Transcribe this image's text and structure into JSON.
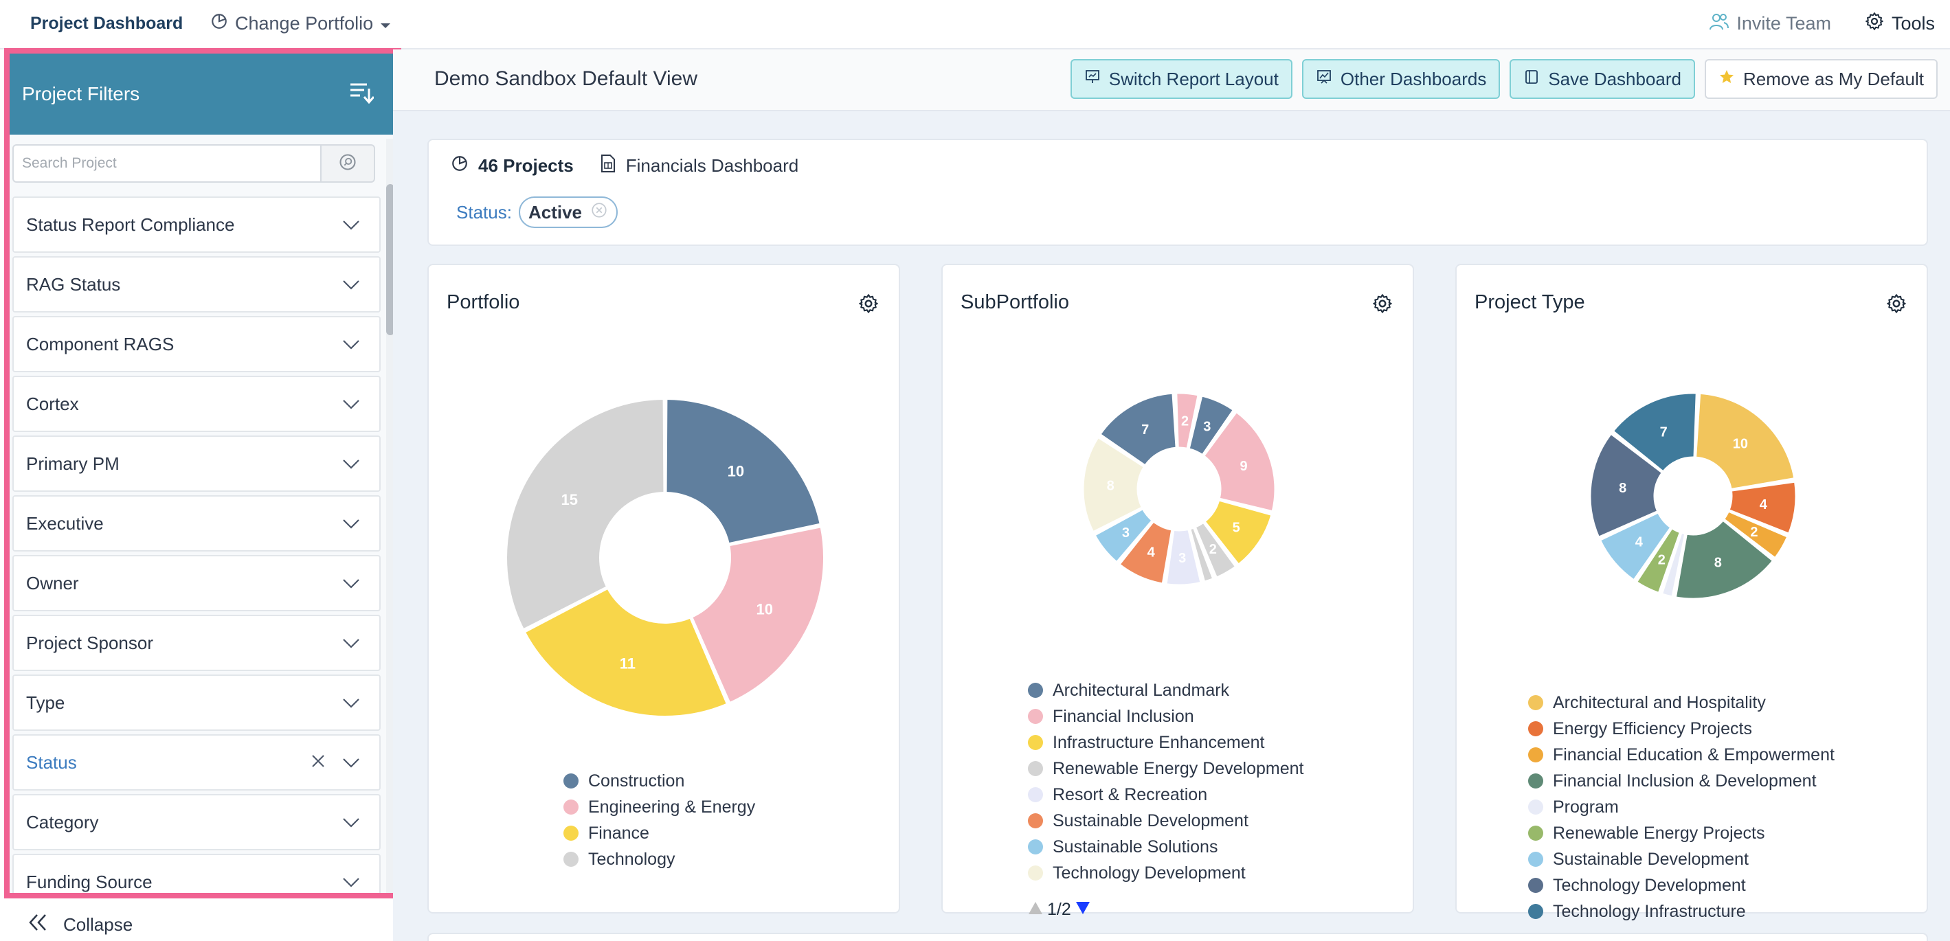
{
  "topbar": {
    "brand": "Project Dashboard",
    "change_portfolio": "Change Portfolio",
    "invite_team": "Invite Team",
    "tools": "Tools"
  },
  "sidebar": {
    "title": "Project Filters",
    "search_placeholder": "Search Project",
    "filters": [
      {
        "label": "Status Report Compliance",
        "active": false
      },
      {
        "label": "RAG Status",
        "active": false
      },
      {
        "label": "Component RAGS",
        "active": false
      },
      {
        "label": "Cortex",
        "active": false
      },
      {
        "label": "Primary PM",
        "active": false
      },
      {
        "label": "Executive",
        "active": false
      },
      {
        "label": "Owner",
        "active": false
      },
      {
        "label": "Project Sponsor",
        "active": false
      },
      {
        "label": "Type",
        "active": false
      },
      {
        "label": "Status",
        "active": true
      },
      {
        "label": "Category",
        "active": false
      },
      {
        "label": "Funding Source",
        "active": false
      }
    ],
    "collapse_label": "Collapse"
  },
  "main": {
    "view_title": "Demo Sandbox Default View",
    "buttons": {
      "switch_layout": "Switch Report Layout",
      "other_dashboards": "Other Dashboards",
      "save_dashboard": "Save Dashboard",
      "remove_default": "Remove as My Default"
    },
    "summary": {
      "projects_count": "46 Projects",
      "financials": "Financials Dashboard",
      "status_label": "Status",
      "status_separator": ":",
      "status_value": "Active"
    }
  },
  "colors": {
    "accent": "#3e88a8",
    "highlight_border": "#f06292",
    "link": "#3b7bbf"
  },
  "chart_data": [
    {
      "type": "pie",
      "title": "Portfolio",
      "categories": [
        "Construction",
        "Engineering & Energy",
        "Finance",
        "Technology"
      ],
      "values": [
        10,
        10,
        11,
        15
      ],
      "colors": [
        "#607f9e",
        "#f4b9c2",
        "#f8d64a",
        "#d4d4d4"
      ],
      "legend": "bottom"
    },
    {
      "type": "pie",
      "title": "SubPortfolio",
      "categories": [
        "Architectural Landmark",
        "Financial Inclusion",
        "Infrastructure Enhancement",
        "Renewable Energy Development",
        "Resort & Recreation",
        "Sustainable Development",
        "Sustainable Solutions",
        "Technology Development"
      ],
      "slices": [
        {
          "value": 3,
          "color": "#607f9e"
        },
        {
          "value": 9,
          "color": "#f4b9c2"
        },
        {
          "value": 5,
          "color": "#f8d64a"
        },
        {
          "value": 2,
          "color": "#d4d4d4"
        },
        {
          "value": 1,
          "color": "#d4d4d4"
        },
        {
          "value": 3,
          "color": "#e6e8f8"
        },
        {
          "value": 4,
          "color": "#ee8a5c"
        },
        {
          "value": 3,
          "color": "#95cbe9"
        },
        {
          "value": 8,
          "color": "#f4f1dc"
        },
        {
          "value": 7,
          "color": "#607f9e"
        },
        {
          "value": 2,
          "color": "#f4b9c2"
        }
      ],
      "legend_colors": [
        "#607f9e",
        "#f4b9c2",
        "#f8d64a",
        "#d4d4d4",
        "#e6e8f8",
        "#ee8a5c",
        "#95cbe9",
        "#f4f1dc"
      ],
      "legend": "bottom",
      "pager": "1/2"
    },
    {
      "type": "pie",
      "title": "Project Type",
      "categories": [
        "Architectural and Hospitality",
        "Energy Efficiency Projects",
        "Financial Education & Empowerment",
        "Financial Inclusion & Development",
        "Program",
        "Renewable Energy Projects",
        "Sustainable Development",
        "Technology Development",
        "Technology Infrastructure"
      ],
      "slices": [
        {
          "value": 10,
          "color": "#f2c55c"
        },
        {
          "value": 4,
          "color": "#e8733a"
        },
        {
          "value": 2,
          "color": "#f0a93a"
        },
        {
          "value": 8,
          "color": "#5f8a76"
        },
        {
          "value": 1,
          "color": "#e8ebf7"
        },
        {
          "value": 2,
          "color": "#98b96a"
        },
        {
          "value": 4,
          "color": "#95cbe9"
        },
        {
          "value": 8,
          "color": "#5a6f8c"
        },
        {
          "value": 7,
          "color": "#3f7a9b"
        }
      ],
      "legend_colors": [
        "#f2c55c",
        "#e8733a",
        "#f0a93a",
        "#5f8a76",
        "#e8ebf7",
        "#98b96a",
        "#95cbe9",
        "#5a6f8c",
        "#3f7a9b"
      ],
      "legend": "bottom"
    }
  ]
}
